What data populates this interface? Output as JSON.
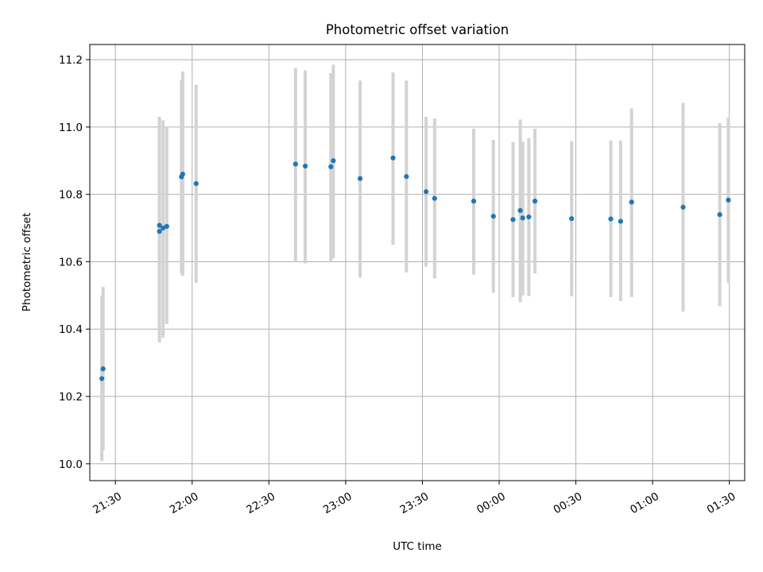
{
  "chart_data": {
    "type": "scatter",
    "title": "Photometric offset variation",
    "xlabel": "UTC time",
    "ylabel": "Photometric offset",
    "xlim": [
      "21:20",
      "01:36"
    ],
    "ylim": [
      9.95,
      11.245
    ],
    "grid": true,
    "x_ticks": [
      "21:30",
      "22:00",
      "22:30",
      "23:00",
      "23:30",
      "00:00",
      "00:30",
      "01:00",
      "01:30"
    ],
    "y_ticks": [
      "10.0",
      "10.2",
      "10.4",
      "10.6",
      "10.8",
      "11.0",
      "11.2"
    ],
    "colors": {
      "points": "#1f77b4",
      "errorbars": "#d3d3d3",
      "grid": "#b0b0b0"
    },
    "points": [
      {
        "x": "21:24:42",
        "y": 10.253,
        "err_low": 10.008,
        "err_high": 10.5
      },
      {
        "x": "21:25:11",
        "y": 10.282,
        "err_low": 10.04,
        "err_high": 10.525
      },
      {
        "x": "21:47:13",
        "y": 10.708,
        "err_low": 10.38,
        "err_high": 11.03
      },
      {
        "x": "21:47:13",
        "y": 10.69,
        "err_low": 10.36,
        "err_high": 11.02
      },
      {
        "x": "21:48:39",
        "y": 10.7,
        "err_low": 10.375,
        "err_high": 11.02
      },
      {
        "x": "21:50:05",
        "y": 10.705,
        "err_low": 10.415,
        "err_high": 11.0
      },
      {
        "x": "21:55:50",
        "y": 10.852,
        "err_low": 10.565,
        "err_high": 11.14
      },
      {
        "x": "21:56:19",
        "y": 10.86,
        "err_low": 10.558,
        "err_high": 11.165
      },
      {
        "x": "22:01:34",
        "y": 10.832,
        "err_low": 10.537,
        "err_high": 11.125
      },
      {
        "x": "22:40:24",
        "y": 10.89,
        "err_low": 10.6,
        "err_high": 11.175
      },
      {
        "x": "22:44:13",
        "y": 10.884,
        "err_low": 10.595,
        "err_high": 11.168
      },
      {
        "x": "22:54:14",
        "y": 10.882,
        "err_low": 10.6,
        "err_high": 11.16
      },
      {
        "x": "22:55:11",
        "y": 10.9,
        "err_low": 10.61,
        "err_high": 11.185
      },
      {
        "x": "23:05:40",
        "y": 10.847,
        "err_low": 10.553,
        "err_high": 11.138
      },
      {
        "x": "23:18:31",
        "y": 10.908,
        "err_low": 10.65,
        "err_high": 11.162
      },
      {
        "x": "23:23:45",
        "y": 10.853,
        "err_low": 10.568,
        "err_high": 11.138
      },
      {
        "x": "23:31:27",
        "y": 10.808,
        "err_low": 10.585,
        "err_high": 11.03
      },
      {
        "x": "23:34:47",
        "y": 10.788,
        "err_low": 10.55,
        "err_high": 11.025
      },
      {
        "x": "23:50:04",
        "y": 10.78,
        "err_low": 10.562,
        "err_high": 10.995
      },
      {
        "x": "23:57:45",
        "y": 10.735,
        "err_low": 10.508,
        "err_high": 10.962
      },
      {
        "x": "00:05:26",
        "y": 10.725,
        "err_low": 10.495,
        "err_high": 10.955
      },
      {
        "x": "00:08:16",
        "y": 10.752,
        "err_low": 10.48,
        "err_high": 11.022
      },
      {
        "x": "00:09:13",
        "y": 10.73,
        "err_low": 10.5,
        "err_high": 10.957
      },
      {
        "x": "00:11:36",
        "y": 10.733,
        "err_low": 10.498,
        "err_high": 10.967
      },
      {
        "x": "00:14:00",
        "y": 10.78,
        "err_low": 10.565,
        "err_high": 10.995
      },
      {
        "x": "00:28:20",
        "y": 10.728,
        "err_low": 10.497,
        "err_high": 10.958
      },
      {
        "x": "00:43:39",
        "y": 10.727,
        "err_low": 10.495,
        "err_high": 10.96
      },
      {
        "x": "00:47:29",
        "y": 10.72,
        "err_low": 10.483,
        "err_high": 10.96
      },
      {
        "x": "00:51:47",
        "y": 10.777,
        "err_low": 10.495,
        "err_high": 11.055
      },
      {
        "x": "01:11:55",
        "y": 10.762,
        "err_low": 10.452,
        "err_high": 11.072
      },
      {
        "x": "01:26:15",
        "y": 10.74,
        "err_low": 10.468,
        "err_high": 11.012
      },
      {
        "x": "01:29:36",
        "y": 10.783,
        "err_low": 10.537,
        "err_high": 11.028
      }
    ]
  }
}
